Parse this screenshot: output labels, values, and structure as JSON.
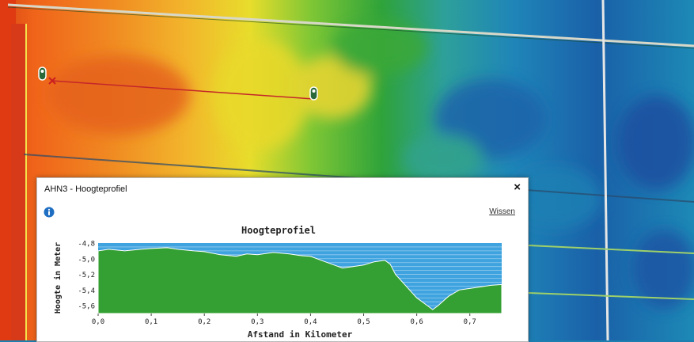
{
  "popup": {
    "title": "AHN3 - Hoogteprofiel",
    "close_label": "×",
    "clear_label": "Wissen"
  },
  "icons": {
    "info": "info-icon",
    "close": "close-icon",
    "start_marker": "location-marker-icon",
    "end_marker": "location-marker-icon",
    "cross": "cross-icon"
  },
  "colors": {
    "profile_fill": "#34a033",
    "sky": "#3ea3df",
    "marker": "#cc1f1f"
  },
  "chart_data": {
    "type": "area",
    "title": "Hoogteprofiel",
    "xlabel": "Afstand in Kilometer",
    "ylabel": "Hoogte in Meter",
    "xlim": [
      0,
      0.76
    ],
    "ylim": [
      -5.7,
      -4.8
    ],
    "x_ticks": [
      "0,0",
      "0,1",
      "0,2",
      "0,3",
      "0,4",
      "0,5",
      "0,6",
      "0,7"
    ],
    "y_ticks": [
      "-4,8",
      "-5,0",
      "-5,2",
      "-5,4",
      "-5,6"
    ],
    "grid": true,
    "series": [
      {
        "x": [
          0,
          0.02,
          0.05,
          0.08,
          0.1,
          0.13,
          0.15,
          0.18,
          0.2,
          0.23,
          0.26,
          0.28,
          0.3,
          0.33,
          0.36,
          0.38,
          0.4,
          0.42,
          0.44,
          0.46,
          0.48,
          0.5,
          0.52,
          0.54,
          0.55,
          0.56,
          0.58,
          0.6,
          0.62,
          0.63,
          0.64,
          0.66,
          0.68,
          0.7,
          0.72,
          0.74,
          0.76
        ],
        "y": [
          -4.9,
          -4.88,
          -4.9,
          -4.88,
          -4.87,
          -4.86,
          -4.88,
          -4.9,
          -4.91,
          -4.95,
          -4.97,
          -4.94,
          -4.95,
          -4.92,
          -4.94,
          -4.96,
          -4.97,
          -5.02,
          -5.07,
          -5.12,
          -5.1,
          -5.08,
          -5.04,
          -5.02,
          -5.07,
          -5.2,
          -5.35,
          -5.5,
          -5.6,
          -5.65,
          -5.6,
          -5.48,
          -5.4,
          -5.38,
          -5.36,
          -5.34,
          -5.33
        ]
      }
    ]
  }
}
